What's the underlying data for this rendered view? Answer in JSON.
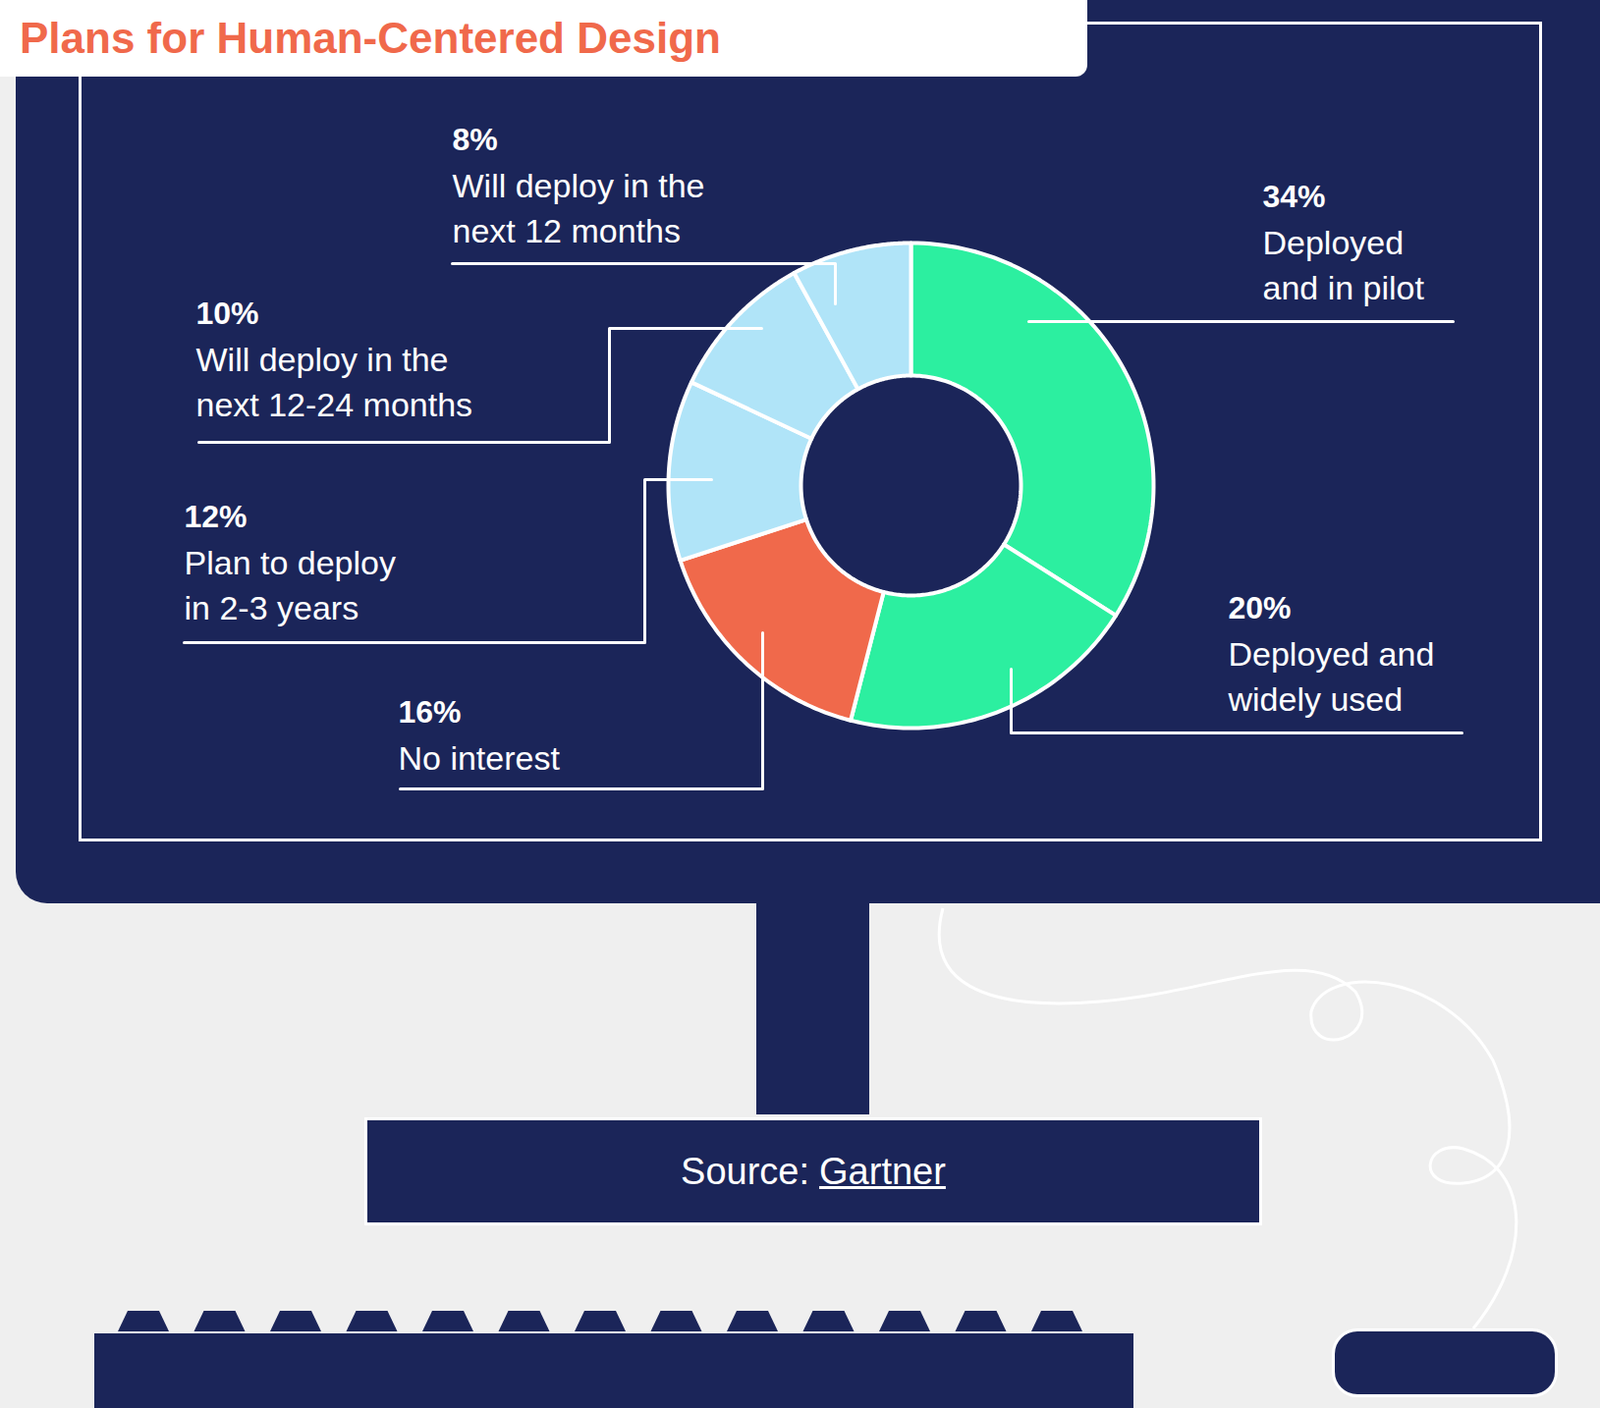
{
  "chart_data": {
    "type": "donut",
    "title": "Plans for Human-Centered Design",
    "categories": [
      "Deployed and in pilot",
      "Deployed and widely used",
      "No interest",
      "Plan to deploy in 2-3 years",
      "Will deploy in the next 12-24 months",
      "Will deploy in the next 12 months"
    ],
    "values": [
      34,
      20,
      16,
      12,
      10,
      8
    ],
    "value_labels": [
      "34%",
      "20%",
      "16%",
      "12%",
      "10%",
      "8%"
    ],
    "colors": [
      "#2cefa0",
      "#2cefa0",
      "#f0694b",
      "#b0e4f8",
      "#b0e4f8",
      "#b0e4f8"
    ],
    "data_labels": true,
    "source": {
      "label": "Source:",
      "name": "Gartner"
    }
  }
}
